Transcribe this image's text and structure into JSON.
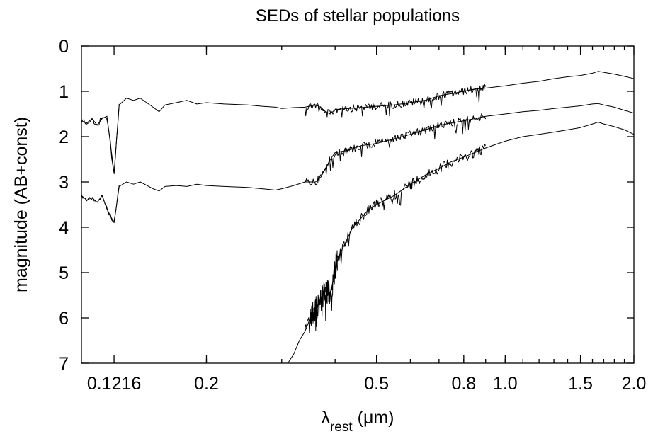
{
  "chart_data": {
    "type": "line",
    "title": "SEDs of stellar populations",
    "xlabel": {
      "base": "λ",
      "sub": "rest",
      "tail": " (μm)"
    },
    "ylabel": "magnitude (AB+const)",
    "x_scale": "log",
    "xlim": [
      0.102,
      2.0
    ],
    "ylim": [
      0,
      7
    ],
    "y_inverted": true,
    "xticks": [
      {
        "value": 0.1216,
        "label": "0.1216"
      },
      {
        "value": 0.2,
        "label": "0.2"
      },
      {
        "value": 0.5,
        "label": "0.5"
      },
      {
        "value": 0.8,
        "label": "0.8"
      },
      {
        "value": 1.0,
        "label": "1.0"
      },
      {
        "value": 1.5,
        "label": "1.5"
      },
      {
        "value": 2.0,
        "label": "2.0"
      }
    ],
    "yticks": [
      0,
      1,
      2,
      3,
      4,
      5,
      6,
      7
    ],
    "color": "#000000",
    "series": [
      {
        "points": [
          [
            0.102,
            1.65
          ],
          [
            0.105,
            1.7
          ],
          [
            0.108,
            1.6
          ],
          [
            0.111,
            1.75
          ],
          [
            0.114,
            1.6
          ],
          [
            0.117,
            1.55
          ],
          [
            0.1216,
            2.8
          ],
          [
            0.125,
            1.3
          ],
          [
            0.13,
            1.15
          ],
          [
            0.135,
            1.2
          ],
          [
            0.14,
            1.15
          ],
          [
            0.15,
            1.35
          ],
          [
            0.155,
            1.45
          ],
          [
            0.16,
            1.3
          ],
          [
            0.17,
            1.25
          ],
          [
            0.18,
            1.2
          ],
          [
            0.19,
            1.28
          ],
          [
            0.2,
            1.25
          ],
          [
            0.22,
            1.28
          ],
          [
            0.25,
            1.3
          ],
          [
            0.27,
            1.33
          ],
          [
            0.29,
            1.35
          ],
          [
            0.3,
            1.38
          ],
          [
            0.32,
            1.36
          ],
          [
            0.34,
            1.35
          ],
          [
            0.36,
            1.3
          ],
          [
            0.37,
            1.35
          ],
          [
            0.38,
            1.45
          ],
          [
            0.39,
            1.5
          ],
          [
            0.4,
            1.4
          ],
          [
            0.43,
            1.38
          ],
          [
            0.46,
            1.36
          ],
          [
            0.5,
            1.33
          ],
          [
            0.55,
            1.3
          ],
          [
            0.6,
            1.25
          ],
          [
            0.65,
            1.2
          ],
          [
            0.7,
            1.1
          ],
          [
            0.75,
            1.05
          ],
          [
            0.8,
            1.0
          ],
          [
            0.85,
            0.95
          ],
          [
            0.9,
            0.93
          ],
          [
            1.0,
            0.88
          ],
          [
            1.1,
            0.82
          ],
          [
            1.2,
            0.78
          ],
          [
            1.3,
            0.72
          ],
          [
            1.4,
            0.68
          ],
          [
            1.5,
            0.65
          ],
          [
            1.6,
            0.6
          ],
          [
            1.65,
            0.56
          ],
          [
            1.7,
            0.58
          ],
          [
            1.8,
            0.62
          ],
          [
            1.9,
            0.67
          ],
          [
            2.0,
            0.72
          ]
        ],
        "jitter": [
          {
            "x0": 0.34,
            "x1": 0.9,
            "amp": 0.16,
            "n": 220
          },
          {
            "x0": 0.102,
            "x1": 0.125,
            "amp": 0.12,
            "n": 30
          }
        ]
      },
      {
        "points": [
          [
            0.102,
            3.3
          ],
          [
            0.105,
            3.4
          ],
          [
            0.108,
            3.35
          ],
          [
            0.111,
            3.45
          ],
          [
            0.114,
            3.3
          ],
          [
            0.117,
            3.6
          ],
          [
            0.1216,
            3.9
          ],
          [
            0.125,
            3.1
          ],
          [
            0.13,
            3.0
          ],
          [
            0.135,
            3.05
          ],
          [
            0.14,
            3.0
          ],
          [
            0.15,
            3.15
          ],
          [
            0.155,
            3.2
          ],
          [
            0.16,
            3.1
          ],
          [
            0.17,
            3.08
          ],
          [
            0.18,
            3.1
          ],
          [
            0.19,
            3.05
          ],
          [
            0.2,
            3.08
          ],
          [
            0.22,
            3.1
          ],
          [
            0.25,
            3.12
          ],
          [
            0.27,
            3.15
          ],
          [
            0.29,
            3.18
          ],
          [
            0.3,
            3.15
          ],
          [
            0.32,
            3.08
          ],
          [
            0.34,
            3.0
          ],
          [
            0.36,
            3.0
          ],
          [
            0.37,
            2.9
          ],
          [
            0.38,
            2.7
          ],
          [
            0.39,
            2.5
          ],
          [
            0.4,
            2.35
          ],
          [
            0.43,
            2.3
          ],
          [
            0.46,
            2.2
          ],
          [
            0.5,
            2.15
          ],
          [
            0.55,
            2.05
          ],
          [
            0.6,
            1.95
          ],
          [
            0.65,
            1.85
          ],
          [
            0.7,
            1.75
          ],
          [
            0.75,
            1.7
          ],
          [
            0.8,
            1.65
          ],
          [
            0.85,
            1.6
          ],
          [
            0.9,
            1.55
          ],
          [
            1.0,
            1.5
          ],
          [
            1.1,
            1.45
          ],
          [
            1.2,
            1.42
          ],
          [
            1.3,
            1.38
          ],
          [
            1.4,
            1.35
          ],
          [
            1.5,
            1.32
          ],
          [
            1.6,
            1.28
          ],
          [
            1.65,
            1.27
          ],
          [
            1.7,
            1.3
          ],
          [
            1.8,
            1.35
          ],
          [
            1.9,
            1.42
          ],
          [
            2.0,
            1.48
          ]
        ],
        "jitter": [
          {
            "x0": 0.34,
            "x1": 0.9,
            "amp": 0.17,
            "n": 220
          },
          {
            "x0": 0.102,
            "x1": 0.125,
            "amp": 0.1,
            "n": 30
          }
        ]
      },
      {
        "points": [
          [
            0.31,
            7.0
          ],
          [
            0.32,
            6.8
          ],
          [
            0.33,
            6.5
          ],
          [
            0.34,
            6.3
          ],
          [
            0.35,
            6.0
          ],
          [
            0.36,
            5.8
          ],
          [
            0.37,
            5.6
          ],
          [
            0.38,
            5.4
          ],
          [
            0.39,
            5.5
          ],
          [
            0.4,
            4.9
          ],
          [
            0.41,
            4.6
          ],
          [
            0.42,
            4.4
          ],
          [
            0.44,
            4.0
          ],
          [
            0.46,
            3.8
          ],
          [
            0.48,
            3.6
          ],
          [
            0.5,
            3.5
          ],
          [
            0.55,
            3.3
          ],
          [
            0.6,
            3.05
          ],
          [
            0.65,
            2.85
          ],
          [
            0.7,
            2.7
          ],
          [
            0.75,
            2.55
          ],
          [
            0.8,
            2.45
          ],
          [
            0.85,
            2.35
          ],
          [
            0.9,
            2.25
          ],
          [
            1.0,
            2.1
          ],
          [
            1.1,
            2.0
          ],
          [
            1.2,
            1.95
          ],
          [
            1.3,
            1.9
          ],
          [
            1.4,
            1.85
          ],
          [
            1.5,
            1.8
          ],
          [
            1.6,
            1.72
          ],
          [
            1.65,
            1.68
          ],
          [
            1.7,
            1.72
          ],
          [
            1.8,
            1.78
          ],
          [
            1.9,
            1.85
          ],
          [
            2.0,
            1.95
          ]
        ],
        "jitter": [
          {
            "x0": 0.34,
            "x1": 0.9,
            "amp": 0.22,
            "n": 240
          },
          {
            "x0": 0.35,
            "x1": 0.405,
            "amp": 0.55,
            "n": 90
          }
        ]
      }
    ]
  }
}
